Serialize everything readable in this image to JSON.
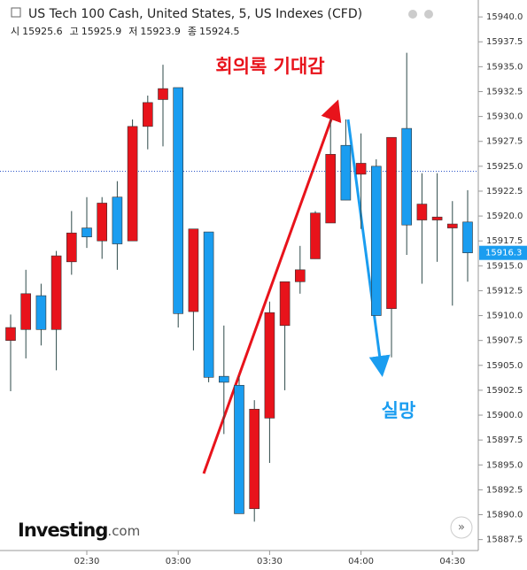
{
  "chart_data": {
    "type": "candlestick",
    "title": "US Tech 100 Cash, United States, 5, US Indexes (CFD)",
    "info": [
      {
        "label": "시",
        "value": 15925.6
      },
      {
        "label": "고",
        "value": 15925.9
      },
      {
        "label": "저",
        "value": 15923.9
      },
      {
        "label": "종",
        "value": 15924.5
      }
    ],
    "annotations": [
      "회의록 기대감",
      "실망"
    ],
    "brand": {
      "name": "Investing",
      "suffix": ".com"
    },
    "categories": [
      null,
      null,
      null,
      null,
      null,
      "02:30",
      null,
      null,
      null,
      null,
      null,
      "03:00",
      null,
      null,
      null,
      null,
      null,
      "03:30",
      null,
      null,
      null,
      null,
      null,
      "04:00",
      null,
      null,
      null,
      null,
      null,
      "04:30",
      null
    ],
    "open": [
      15907.5,
      15908.6,
      15912.0,
      15908.6,
      15915.4,
      15918.8,
      15917.5,
      15921.9,
      15917.5,
      15929.0,
      15931.7,
      15932.9,
      15910.4,
      15918.4,
      15903.9,
      15903.0,
      15890.6,
      15899.7,
      15909.0,
      15913.4,
      15915.7,
      15919.3,
      15927.1,
      15924.2,
      15925.0,
      15910.7,
      15928.8,
      15919.6,
      15919.6,
      15918.8,
      15919.4
    ],
    "high": [
      15910.1,
      15914.6,
      15913.2,
      15916.5,
      15920.5,
      15921.9,
      15921.9,
      15923.5,
      15929.7,
      15932.1,
      15935.2,
      15932.9,
      15918.7,
      15918.4,
      15909.0,
      15903.9,
      15901.5,
      15911.4,
      15913.4,
      15917.0,
      15920.5,
      15929.7,
      15929.7,
      15928.3,
      15925.7,
      15927.9,
      15936.4,
      15924.3,
      15924.3,
      15921.5,
      15922.6
    ],
    "low": [
      15902.4,
      15905.7,
      15907.0,
      15904.5,
      15914.1,
      15916.8,
      15915.7,
      15914.6,
      15917.5,
      15926.7,
      15927.0,
      15908.8,
      15906.5,
      15903.3,
      15898.1,
      15890.1,
      15889.3,
      15895.2,
      15902.5,
      15912.2,
      15915.7,
      15919.3,
      15921.6,
      15918.7,
      15910.0,
      15905.8,
      15916.1,
      15913.2,
      15915.4,
      15911.0,
      15913.4
    ],
    "close": [
      15908.8,
      15912.2,
      15908.6,
      15916.0,
      15918.3,
      15917.9,
      15921.3,
      15917.2,
      15929.0,
      15931.4,
      15932.8,
      15910.2,
      15918.7,
      15903.8,
      15903.3,
      15890.1,
      15900.6,
      15910.3,
      15913.4,
      15914.6,
      15920.3,
      15926.2,
      15921.6,
      15925.3,
      15910.0,
      15927.9,
      15919.1,
      15921.2,
      15919.9,
      15919.2,
      15916.3
    ],
    "up_color": "#e8131b",
    "down_color": "#1a9df0",
    "ref_line": 15924.5,
    "last_price": 15916.3,
    "ylim": [
      15886.4,
      15941.7
    ],
    "yticks": [
      15887.5,
      {
        "value": 15890,
        "label": "15890.0"
      },
      15892.5,
      {
        "value": 15895,
        "label": "15895.0"
      },
      15897.5,
      {
        "value": 15900,
        "label": "15900.0"
      },
      15902.5,
      {
        "value": 15905,
        "label": "15905.0"
      },
      15907.5,
      {
        "value": 15910,
        "label": "15910.0"
      },
      15912.5,
      {
        "value": 15915,
        "label": "15915.0"
      },
      15917.5,
      {
        "value": 15920,
        "label": "15920.0"
      },
      15922.5,
      {
        "value": 15925,
        "label": "15925.0"
      },
      15927.5,
      {
        "value": 15930,
        "label": "15930.0"
      },
      15932.5,
      {
        "value": 15935,
        "label": "15935.0"
      },
      15937.5,
      {
        "value": 15940,
        "label": "15940.0"
      }
    ]
  }
}
